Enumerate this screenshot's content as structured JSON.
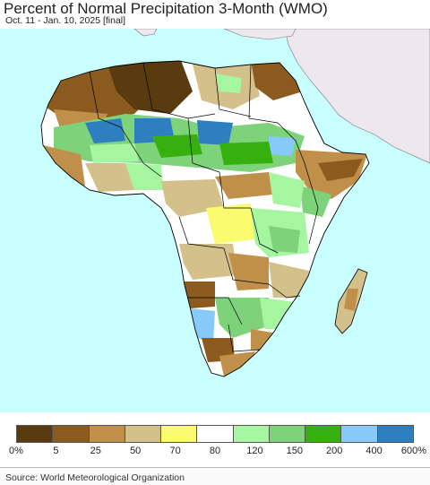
{
  "header": {
    "title": "Percent of Normal Precipitation 3-Month (WMO)",
    "subtitle": "Oct. 11 - Jan. 10, 2025 [final]"
  },
  "colors": {
    "ocean": "#c9ffff",
    "land_outside": "#ece8ee",
    "border": "#000000"
  },
  "legend": {
    "classes": [
      {
        "color": "#5a3b10"
      },
      {
        "color": "#8b5a1e"
      },
      {
        "color": "#c0904b"
      },
      {
        "color": "#d4c08a"
      },
      {
        "color": "#fbfb70"
      },
      {
        "color": "#ffffff"
      },
      {
        "color": "#a6f5a0"
      },
      {
        "color": "#7ed37a"
      },
      {
        "color": "#36b00f"
      },
      {
        "color": "#87c9f8"
      },
      {
        "color": "#2d7fc0"
      }
    ],
    "labels": [
      "0%",
      "5",
      "25",
      "50",
      "70",
      "80",
      "120",
      "150",
      "200",
      "400",
      "600%"
    ]
  },
  "footer": {
    "source": "Source: World Meteorological Organization"
  }
}
